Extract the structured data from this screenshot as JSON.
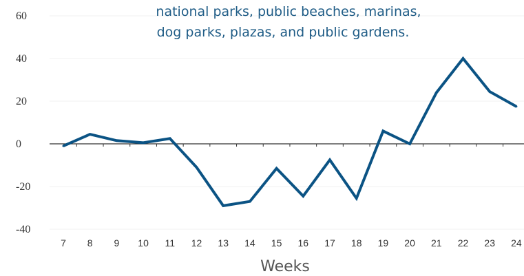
{
  "chart_data": {
    "type": "line",
    "title": "",
    "annotation_lines": [
      "national parks, public beaches, marinas,",
      "dog parks, plazas, and public gardens."
    ],
    "xlabel": "Weeks",
    "ylabel": "",
    "x": [
      "7",
      "8",
      "9",
      "10",
      "11",
      "12",
      "13",
      "14",
      "15",
      "16",
      "17",
      "18",
      "19",
      "20",
      "21",
      "22",
      "23",
      "24"
    ],
    "yticks": [
      "60",
      "40",
      "20",
      "0",
      "-20",
      "-40"
    ],
    "ylim": [
      -40,
      60
    ],
    "series": [
      {
        "values": [
          -1,
          4.5,
          1.5,
          0.5,
          2.5,
          -11,
          -29,
          -27,
          -11.5,
          -24.5,
          -7.5,
          -25.5,
          6,
          0,
          24,
          40,
          24.5,
          17.5
        ]
      }
    ],
    "grid": true,
    "colors": {
      "line": "#0b5384",
      "grid": "#f0f0f0",
      "axis": "#333333",
      "annotation": "#1f5c86"
    }
  }
}
